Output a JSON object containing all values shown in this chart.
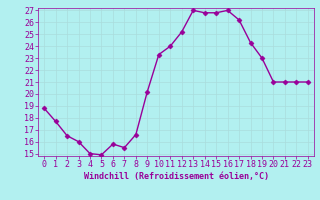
{
  "x": [
    0,
    1,
    2,
    3,
    4,
    5,
    6,
    7,
    8,
    9,
    10,
    11,
    12,
    13,
    14,
    15,
    16,
    17,
    18,
    19,
    20,
    21,
    22,
    23
  ],
  "y": [
    18.8,
    17.7,
    16.5,
    16.0,
    15.0,
    14.9,
    15.8,
    15.5,
    16.6,
    20.2,
    23.3,
    24.0,
    25.2,
    27.0,
    26.8,
    26.8,
    27.0,
    26.2,
    24.3,
    23.0,
    21.0,
    21.0,
    21.0,
    21.0
  ],
  "line_color": "#990099",
  "marker": "D",
  "marker_size": 2.5,
  "bg_color": "#b2f0f0",
  "grid_color": "#aadddd",
  "xlabel": "Windchill (Refroidissement éolien,°C)",
  "ylim": [
    15,
    27
  ],
  "xlim": [
    -0.5,
    23.5
  ],
  "yticks": [
    15,
    16,
    17,
    18,
    19,
    20,
    21,
    22,
    23,
    24,
    25,
    26,
    27
  ],
  "xticks": [
    0,
    1,
    2,
    3,
    4,
    5,
    6,
    7,
    8,
    9,
    10,
    11,
    12,
    13,
    14,
    15,
    16,
    17,
    18,
    19,
    20,
    21,
    22,
    23
  ],
  "line_width": 1.0,
  "tick_labelsize": 6,
  "xlabel_fontsize": 6,
  "color": "#990099"
}
